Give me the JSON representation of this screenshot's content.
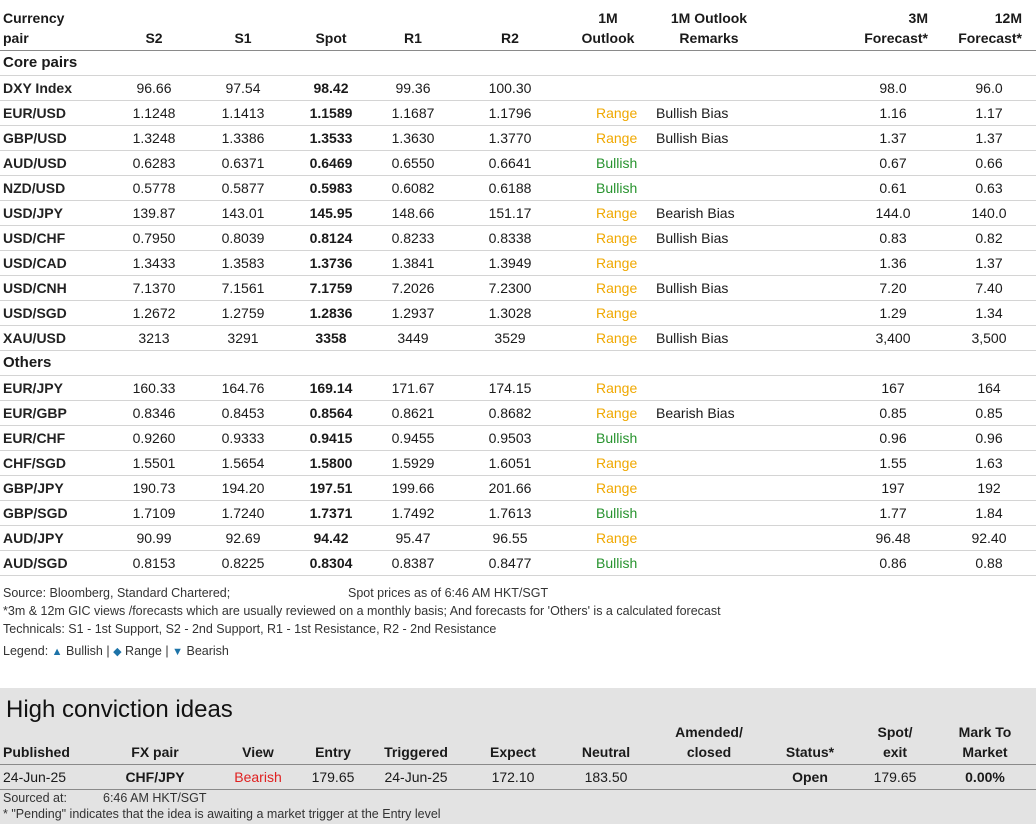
{
  "headers": {
    "pair": [
      "Currency",
      "pair"
    ],
    "s2": "S2",
    "s1": "S1",
    "spot": "Spot",
    "r1": "R1",
    "r2": "R2",
    "outlook": [
      "1M",
      "Outlook"
    ],
    "remarks": [
      "1M Outlook",
      "Remarks"
    ],
    "f3m": [
      "3M",
      "Forecast*"
    ],
    "f12m": [
      "12M",
      "Forecast*"
    ]
  },
  "sections": {
    "core": "Core pairs",
    "others": "Others"
  },
  "core_rows": [
    {
      "pair": "DXY Index",
      "s2": "96.66",
      "s1": "97.54",
      "spot": "98.42",
      "r1": "99.36",
      "r2": "100.30",
      "outlook": "",
      "remark": "",
      "f3m": "98.0",
      "f12m": "96.0"
    },
    {
      "pair": "EUR/USD",
      "s2": "1.1248",
      "s1": "1.1413",
      "spot": "1.1589",
      "r1": "1.1687",
      "r2": "1.1796",
      "outlook": "Range",
      "remark": "Bullish Bias",
      "f3m": "1.16",
      "f12m": "1.17"
    },
    {
      "pair": "GBP/USD",
      "s2": "1.3248",
      "s1": "1.3386",
      "spot": "1.3533",
      "r1": "1.3630",
      "r2": "1.3770",
      "outlook": "Range",
      "remark": "Bullish Bias",
      "f3m": "1.37",
      "f12m": "1.37"
    },
    {
      "pair": "AUD/USD",
      "s2": "0.6283",
      "s1": "0.6371",
      "spot": "0.6469",
      "r1": "0.6550",
      "r2": "0.6641",
      "outlook": "Bullish",
      "remark": "",
      "f3m": "0.67",
      "f12m": "0.66"
    },
    {
      "pair": "NZD/USD",
      "s2": "0.5778",
      "s1": "0.5877",
      "spot": "0.5983",
      "r1": "0.6082",
      "r2": "0.6188",
      "outlook": "Bullish",
      "remark": "",
      "f3m": "0.61",
      "f12m": "0.63"
    },
    {
      "pair": "USD/JPY",
      "s2": "139.87",
      "s1": "143.01",
      "spot": "145.95",
      "r1": "148.66",
      "r2": "151.17",
      "outlook": "Range",
      "remark": "Bearish Bias",
      "f3m": "144.0",
      "f12m": "140.0"
    },
    {
      "pair": "USD/CHF",
      "s2": "0.7950",
      "s1": "0.8039",
      "spot": "0.8124",
      "r1": "0.8233",
      "r2": "0.8338",
      "outlook": "Range",
      "remark": "Bullish Bias",
      "f3m": "0.83",
      "f12m": "0.82"
    },
    {
      "pair": "USD/CAD",
      "s2": "1.3433",
      "s1": "1.3583",
      "spot": "1.3736",
      "r1": "1.3841",
      "r2": "1.3949",
      "outlook": "Range",
      "remark": "",
      "f3m": "1.36",
      "f12m": "1.37"
    },
    {
      "pair": "USD/CNH",
      "s2": "7.1370",
      "s1": "7.1561",
      "spot": "7.1759",
      "r1": "7.2026",
      "r2": "7.2300",
      "outlook": "Range",
      "remark": "Bullish Bias",
      "f3m": "7.20",
      "f12m": "7.40"
    },
    {
      "pair": "USD/SGD",
      "s2": "1.2672",
      "s1": "1.2759",
      "spot": "1.2836",
      "r1": "1.2937",
      "r2": "1.3028",
      "outlook": "Range",
      "remark": "",
      "f3m": "1.29",
      "f12m": "1.34"
    },
    {
      "pair": "XAU/USD",
      "s2": "3213",
      "s1": "3291",
      "spot": "3358",
      "r1": "3449",
      "r2": "3529",
      "outlook": "Range",
      "remark": "Bullish Bias",
      "f3m": "3,400",
      "f12m": "3,500"
    }
  ],
  "other_rows": [
    {
      "pair": "EUR/JPY",
      "s2": "160.33",
      "s1": "164.76",
      "spot": "169.14",
      "r1": "171.67",
      "r2": "174.15",
      "outlook": "Range",
      "remark": "",
      "f3m": "167",
      "f12m": "164"
    },
    {
      "pair": "EUR/GBP",
      "s2": "0.8346",
      "s1": "0.8453",
      "spot": "0.8564",
      "r1": "0.8621",
      "r2": "0.8682",
      "outlook": "Range",
      "remark": "Bearish Bias",
      "f3m": "0.85",
      "f12m": "0.85"
    },
    {
      "pair": "EUR/CHF",
      "s2": "0.9260",
      "s1": "0.9333",
      "spot": "0.9415",
      "r1": "0.9455",
      "r2": "0.9503",
      "outlook": "Bullish",
      "remark": "",
      "f3m": "0.96",
      "f12m": "0.96"
    },
    {
      "pair": "CHF/SGD",
      "s2": "1.5501",
      "s1": "1.5654",
      "spot": "1.5800",
      "r1": "1.5929",
      "r2": "1.6051",
      "outlook": "Range",
      "remark": "",
      "f3m": "1.55",
      "f12m": "1.63"
    },
    {
      "pair": "GBP/JPY",
      "s2": "190.73",
      "s1": "194.20",
      "spot": "197.51",
      "r1": "199.66",
      "r2": "201.66",
      "outlook": "Range",
      "remark": "",
      "f3m": "197",
      "f12m": "192"
    },
    {
      "pair": "GBP/SGD",
      "s2": "1.7109",
      "s1": "1.7240",
      "spot": "1.7371",
      "r1": "1.7492",
      "r2": "1.7613",
      "outlook": "Bullish",
      "remark": "",
      "f3m": "1.77",
      "f12m": "1.84"
    },
    {
      "pair": "AUD/JPY",
      "s2": "90.99",
      "s1": "92.69",
      "spot": "94.42",
      "r1": "95.47",
      "r2": "96.55",
      "outlook": "Range",
      "remark": "",
      "f3m": "96.48",
      "f12m": "92.40"
    },
    {
      "pair": "AUD/SGD",
      "s2": "0.8153",
      "s1": "0.8225",
      "spot": "0.8304",
      "r1": "0.8387",
      "r2": "0.8477",
      "outlook": "Bullish",
      "remark": "",
      "f3m": "0.86",
      "f12m": "0.88"
    }
  ],
  "notes": {
    "source": "Source: Bloomberg, Standard Chartered;",
    "spot_time": "Spot prices as of 6:46 AM HKT/SGT",
    "forecast_note": "*3m & 12m GIC views /forecasts which are usually reviewed on a monthly basis; And forecasts for 'Others' is a calculated forecast",
    "technicals": "Technicals: S1 - 1st Support, S2 - 2nd Support, R1 - 1st Resistance, R2 - 2nd Resistance",
    "legend_label": "Legend:",
    "legend_bullish": "Bullish",
    "legend_range": "Range",
    "legend_bearish": "Bearish",
    "sep": "|"
  },
  "hci": {
    "title": "High conviction ideas",
    "headers": {
      "published": "Published",
      "pair": "FX pair",
      "view": "View",
      "entry": "Entry",
      "triggered": "Triggered",
      "expect": "Expect",
      "neutral": "Neutral",
      "amended": [
        "Amended/",
        "closed"
      ],
      "status": "Status*",
      "spot": [
        "Spot/",
        "exit"
      ],
      "mtm": [
        "Mark To",
        "Market"
      ]
    },
    "row": {
      "published": "24-Jun-25",
      "pair": "CHF/JPY",
      "view": "Bearish",
      "entry": "179.65",
      "triggered": "24-Jun-25",
      "expect": "172.10",
      "neutral": "183.50",
      "amended": "",
      "status": "Open",
      "spot": "179.65",
      "mtm": "0.00%"
    },
    "sourced_label": "Sourced at:",
    "sourced_time": "6:46 AM HKT/SGT",
    "pending_note": "* \"Pending\" indicates that the idea is awaiting a market trigger at the Entry level"
  }
}
